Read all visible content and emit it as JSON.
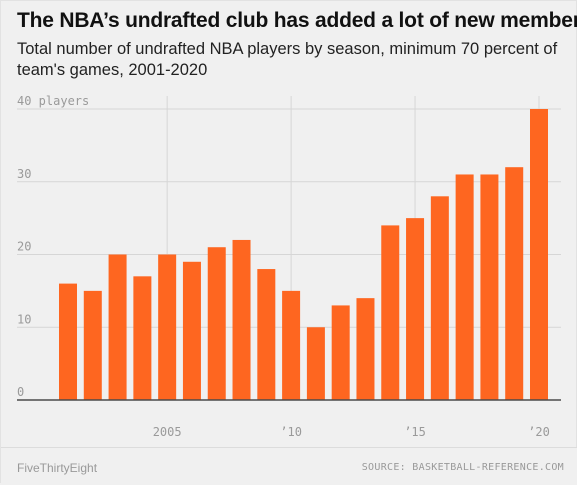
{
  "header": {
    "title": "The NBA’s undrafted club has added a lot of new members",
    "subtitle": "Total number of undrafted NBA players by season, minimum 70 percent of team's games, 2001-2020"
  },
  "footer": {
    "brand": "FiveThirtyEight",
    "source": "SOURCE: BASKETBALL-REFERENCE.COM"
  },
  "colors": {
    "bar": "#fe6620",
    "grid": "#d6d6d6",
    "baseline": "#4a4a4a",
    "background": "#f0f0f0"
  },
  "chart_data": {
    "type": "bar",
    "x": [
      2001,
      2002,
      2003,
      2004,
      2005,
      2006,
      2007,
      2008,
      2009,
      2010,
      2011,
      2012,
      2013,
      2014,
      2015,
      2016,
      2017,
      2018,
      2019,
      2020
    ],
    "values": [
      16,
      15,
      20,
      17,
      20,
      19,
      21,
      22,
      18,
      15,
      10,
      13,
      14,
      24,
      25,
      28,
      31,
      31,
      32,
      40
    ],
    "ylim": [
      0,
      40
    ],
    "yticks": [
      0,
      10,
      20,
      30,
      40
    ],
    "ytick_labels": [
      "0",
      "10",
      "20",
      "30",
      "40 players"
    ],
    "xticks": [
      2005,
      2010,
      2015,
      2020
    ],
    "xtick_labels": [
      "2005",
      "’10",
      "’15",
      "’20"
    ],
    "xlabel": "",
    "ylabel": "",
    "grid": true
  }
}
